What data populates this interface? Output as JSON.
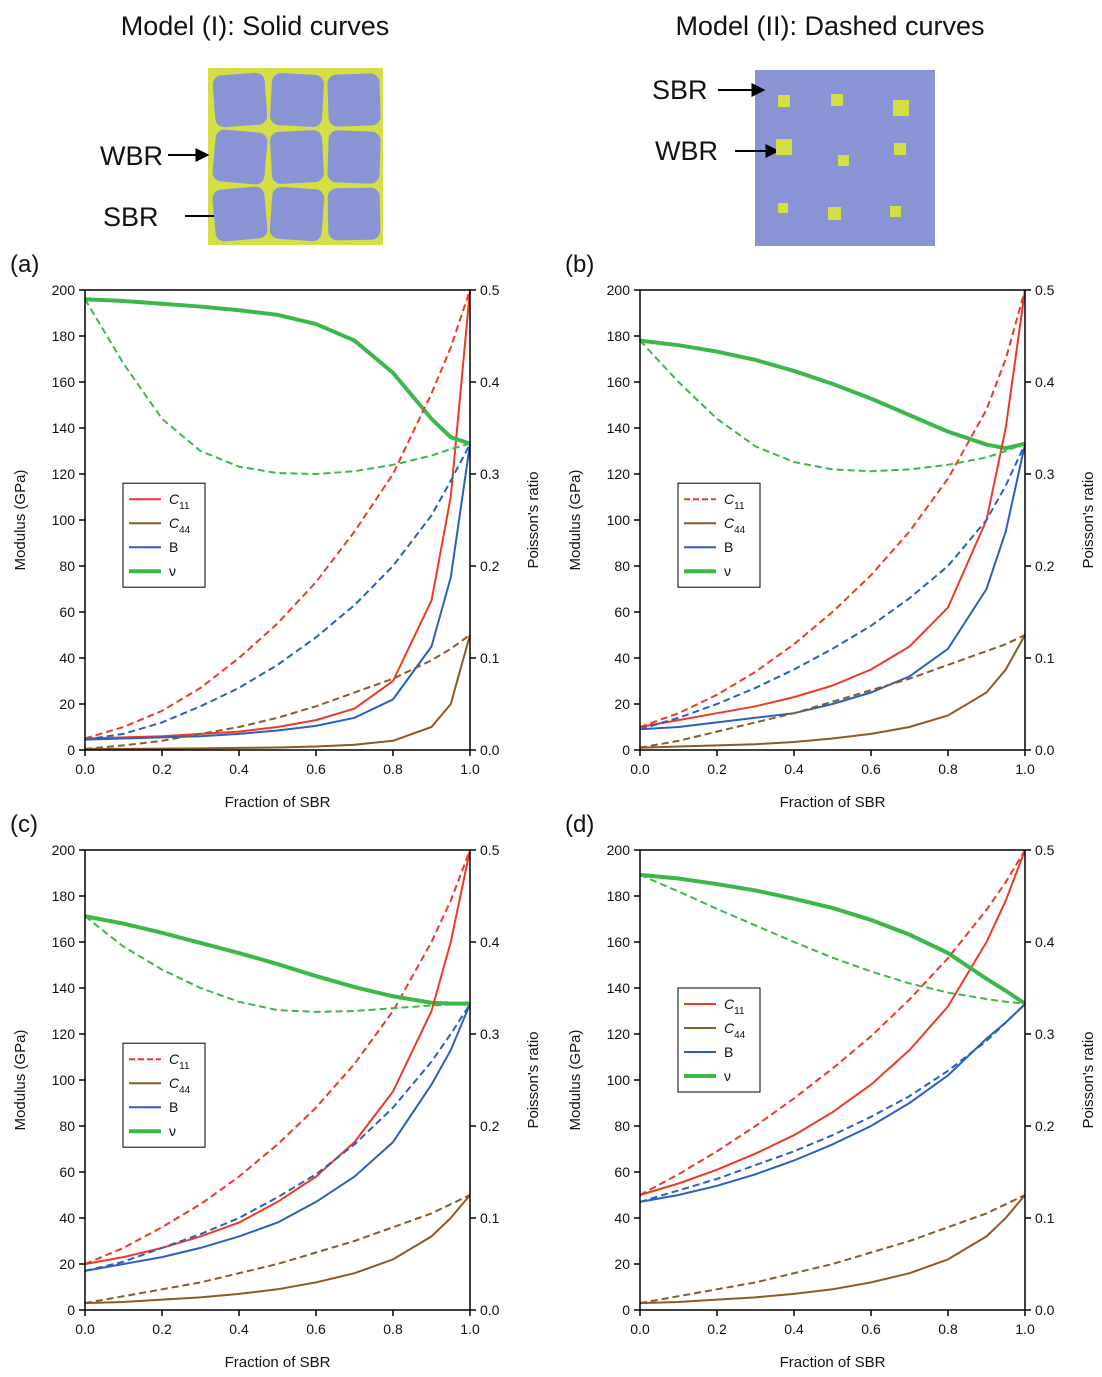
{
  "diagrams": [
    {
      "title": "Model (I): Solid curves",
      "labels": [
        "WBR",
        "SBR"
      ]
    },
    {
      "title": "Model (II): Dashed curves",
      "labels": [
        "SBR",
        "WBR"
      ]
    }
  ],
  "chart_data": [
    {
      "type": "line",
      "title": "(a)",
      "x_label": "Fraction of SBR",
      "y_label": "Modulus (GPa)",
      "y2_label": "Poisson's ratio",
      "legend": "center left",
      "x": [
        0,
        0.1,
        0.2,
        0.3,
        0.4,
        0.5,
        0.6,
        0.7,
        0.8,
        0.9,
        0.95,
        1
      ],
      "xlim": [
        0,
        1
      ],
      "xticks": [
        {
          "value": 0,
          "label": "0.0"
        },
        0.2,
        0.4,
        0.6,
        0.8,
        {
          "value": 1,
          "label": "1.0"
        }
      ],
      "ylim": [
        0,
        200
      ],
      "yticks": [
        0,
        20,
        40,
        60,
        80,
        100,
        120,
        140,
        160,
        180,
        200
      ],
      "y2lim": [
        0,
        0.5
      ],
      "y2ticks": [
        {
          "value": 0,
          "label": "0.0"
        },
        0.1,
        0.2,
        0.3,
        0.4,
        0.5
      ],
      "series": [
        {
          "name": "C11",
          "color": "#ee3a24",
          "dashed": false,
          "in_legend": true,
          "values": [
            5,
            5.5,
            6,
            7,
            8,
            10,
            13,
            18,
            30,
            65,
            110,
            200
          ]
        },
        {
          "name": "C44",
          "color": "#8b5a2b",
          "dashed": false,
          "in_legend": true,
          "values": [
            0.5,
            0.5,
            0.6,
            0.7,
            0.9,
            1.1,
            1.5,
            2.3,
            4,
            10,
            20,
            50
          ]
        },
        {
          "name": "B",
          "color": "#2b5fc0",
          "dashed": false,
          "in_legend": true,
          "values": [
            4.5,
            5,
            5.5,
            6,
            7,
            8.5,
            10.5,
            14,
            22,
            45,
            75,
            133
          ]
        },
        {
          "name": "ν",
          "color": "#3cb84a",
          "dashed": false,
          "in_legend": true,
          "axis": "y2",
          "values": [
            0.49,
            0.488,
            0.485,
            0.482,
            0.478,
            0.473,
            0.463,
            0.445,
            0.41,
            0.36,
            0.34,
            0.333
          ]
        },
        {
          "name": "C11",
          "color": "#ee3a24",
          "dashed": true,
          "in_legend": false,
          "values": [
            5,
            10,
            17,
            27,
            40,
            55,
            73,
            95,
            120,
            155,
            175,
            200
          ]
        },
        {
          "name": "C44",
          "color": "#8b5a2b",
          "dashed": true,
          "in_legend": false,
          "values": [
            0.5,
            2,
            4,
            7,
            10,
            14,
            19,
            25,
            31,
            39,
            44,
            50
          ]
        },
        {
          "name": "B",
          "color": "#2b5fc0",
          "dashed": true,
          "in_legend": false,
          "values": [
            4.5,
            7,
            12,
            19,
            27,
            37,
            49,
            63,
            80,
            102,
            117,
            133
          ]
        },
        {
          "name": "ν",
          "color": "#3cb84a",
          "dashed": true,
          "in_legend": false,
          "axis": "y2",
          "values": [
            0.49,
            0.42,
            0.36,
            0.325,
            0.308,
            0.301,
            0.3,
            0.303,
            0.31,
            0.32,
            0.327,
            0.333
          ]
        }
      ]
    },
    {
      "type": "line",
      "title": "(b)",
      "x_label": "Fraction of SBR",
      "y_label": "Modulus (GPa)",
      "y2_label": "Poisson's ratio",
      "legend": "center left",
      "x": [
        0,
        0.1,
        0.2,
        0.3,
        0.4,
        0.5,
        0.6,
        0.7,
        0.8,
        0.9,
        0.95,
        1
      ],
      "xlim": [
        0,
        1
      ],
      "xticks": [
        {
          "value": 0,
          "label": "0.0"
        },
        0.2,
        0.4,
        0.6,
        0.8,
        {
          "value": 1,
          "label": "1.0"
        }
      ],
      "ylim": [
        0,
        200
      ],
      "yticks": [
        0,
        20,
        40,
        60,
        80,
        100,
        120,
        140,
        160,
        180,
        200
      ],
      "y2lim": [
        0,
        0.5
      ],
      "y2ticks": [
        {
          "value": 0,
          "label": "0.0"
        },
        0.1,
        0.2,
        0.3,
        0.4,
        0.5
      ],
      "series": [
        {
          "name": "C11",
          "color": "#ee3a24",
          "dashed": true,
          "in_legend": true,
          "values": [
            10,
            16,
            24,
            34,
            46,
            60,
            76,
            95,
            118,
            148,
            170,
            200
          ]
        },
        {
          "name": "C44",
          "color": "#8b5a2b",
          "dashed": false,
          "in_legend": true,
          "values": [
            1,
            1.5,
            2,
            2.5,
            3.5,
            5,
            7,
            10,
            15,
            25,
            35,
            50
          ]
        },
        {
          "name": "B",
          "color": "#2b5fc0",
          "dashed": false,
          "in_legend": true,
          "values": [
            9,
            10,
            12,
            14,
            16,
            20,
            25,
            32,
            44,
            70,
            95,
            133
          ]
        },
        {
          "name": "ν",
          "color": "#3cb84a",
          "dashed": false,
          "in_legend": true,
          "axis": "y2",
          "values": [
            0.445,
            0.44,
            0.433,
            0.424,
            0.412,
            0.398,
            0.382,
            0.364,
            0.346,
            0.332,
            0.328,
            0.333
          ]
        },
        {
          "name": "C11",
          "color": "#ee3a24",
          "dashed": false,
          "in_legend": false,
          "values": [
            10,
            13,
            16,
            19,
            23,
            28,
            35,
            45,
            62,
            100,
            140,
            200
          ]
        },
        {
          "name": "C44",
          "color": "#8b5a2b",
          "dashed": true,
          "in_legend": false,
          "values": [
            1,
            4,
            8,
            12,
            16,
            21,
            26,
            31,
            37,
            43,
            46,
            50
          ]
        },
        {
          "name": "B",
          "color": "#2b5fc0",
          "dashed": true,
          "in_legend": false,
          "values": [
            9,
            14,
            20,
            27,
            35,
            44,
            54,
            66,
            80,
            100,
            115,
            133
          ]
        },
        {
          "name": "ν",
          "color": "#3cb84a",
          "dashed": true,
          "in_legend": false,
          "axis": "y2",
          "values": [
            0.445,
            0.4,
            0.36,
            0.33,
            0.313,
            0.305,
            0.303,
            0.305,
            0.31,
            0.318,
            0.325,
            0.333
          ]
        }
      ]
    },
    {
      "type": "line",
      "title": "(c)",
      "x_label": "Fraction of SBR",
      "y_label": "Modulus (GPa)",
      "y2_label": "Poisson's ratio",
      "legend": "center left",
      "x": [
        0,
        0.1,
        0.2,
        0.3,
        0.4,
        0.5,
        0.6,
        0.7,
        0.8,
        0.9,
        0.95,
        1
      ],
      "xlim": [
        0,
        1
      ],
      "xticks": [
        {
          "value": 0,
          "label": "0.0"
        },
        0.2,
        0.4,
        0.6,
        0.8,
        {
          "value": 1,
          "label": "1.0"
        }
      ],
      "ylim": [
        0,
        200
      ],
      "yticks": [
        0,
        20,
        40,
        60,
        80,
        100,
        120,
        140,
        160,
        180,
        200
      ],
      "y2lim": [
        0,
        0.5
      ],
      "y2ticks": [
        {
          "value": 0,
          "label": "0.0"
        },
        0.1,
        0.2,
        0.3,
        0.4,
        0.5
      ],
      "series": [
        {
          "name": "C11",
          "color": "#ee3a24",
          "dashed": true,
          "in_legend": true,
          "values": [
            20,
            27,
            36,
            46,
            58,
            72,
            88,
            107,
            130,
            160,
            178,
            200
          ]
        },
        {
          "name": "C44",
          "color": "#8b5a2b",
          "dashed": false,
          "in_legend": true,
          "values": [
            3,
            3.5,
            4.5,
            5.5,
            7,
            9,
            12,
            16,
            22,
            32,
            40,
            50
          ]
        },
        {
          "name": "B",
          "color": "#2b5fc0",
          "dashed": false,
          "in_legend": true,
          "values": [
            17,
            20,
            23,
            27,
            32,
            38,
            47,
            58,
            73,
            98,
            113,
            133
          ]
        },
        {
          "name": "ν",
          "color": "#3cb84a",
          "dashed": false,
          "in_legend": true,
          "axis": "y2",
          "values": [
            0.428,
            0.42,
            0.41,
            0.399,
            0.388,
            0.376,
            0.363,
            0.351,
            0.341,
            0.334,
            0.333,
            0.333
          ]
        },
        {
          "name": "C11",
          "color": "#ee3a24",
          "dashed": false,
          "in_legend": false,
          "values": [
            20,
            23,
            27,
            32,
            38,
            47,
            58,
            73,
            95,
            130,
            160,
            200
          ]
        },
        {
          "name": "C44",
          "color": "#8b5a2b",
          "dashed": true,
          "in_legend": false,
          "values": [
            3,
            6,
            9,
            12,
            16,
            20,
            25,
            30,
            36,
            42,
            46,
            50
          ]
        },
        {
          "name": "B",
          "color": "#2b5fc0",
          "dashed": true,
          "in_legend": false,
          "values": [
            17,
            21,
            27,
            33,
            40,
            49,
            59,
            72,
            88,
            108,
            120,
            133
          ]
        },
        {
          "name": "ν",
          "color": "#3cb84a",
          "dashed": true,
          "in_legend": false,
          "axis": "y2",
          "values": [
            0.428,
            0.395,
            0.37,
            0.35,
            0.335,
            0.326,
            0.324,
            0.325,
            0.328,
            0.331,
            0.332,
            0.333
          ]
        }
      ]
    },
    {
      "type": "line",
      "title": "(d)",
      "x_label": "Fraction of SBR",
      "y_label": "Modulus (GPa)",
      "y2_label": "Poisson's ratio",
      "legend": "upper left",
      "x": [
        0,
        0.1,
        0.2,
        0.3,
        0.4,
        0.5,
        0.6,
        0.7,
        0.8,
        0.9,
        0.95,
        1
      ],
      "xlim": [
        0,
        1
      ],
      "xticks": [
        {
          "value": 0,
          "label": "0.0"
        },
        0.2,
        0.4,
        0.6,
        0.8,
        {
          "value": 1,
          "label": "1.0"
        }
      ],
      "ylim": [
        0,
        200
      ],
      "yticks": [
        0,
        20,
        40,
        60,
        80,
        100,
        120,
        140,
        160,
        180,
        200
      ],
      "y2lim": [
        0,
        0.5
      ],
      "y2ticks": [
        {
          "value": 0,
          "label": "0.0"
        },
        0.1,
        0.2,
        0.3,
        0.4,
        0.5
      ],
      "series": [
        {
          "name": "C11",
          "color": "#ee3a24",
          "dashed": false,
          "in_legend": true,
          "values": [
            50,
            55,
            61,
            68,
            76,
            86,
            98,
            113,
            132,
            160,
            178,
            200
          ]
        },
        {
          "name": "C44",
          "color": "#8b5a2b",
          "dashed": false,
          "in_legend": true,
          "values": [
            3,
            3.5,
            4.5,
            5.5,
            7,
            9,
            12,
            16,
            22,
            32,
            40,
            50
          ]
        },
        {
          "name": "B",
          "color": "#2b5fc0",
          "dashed": false,
          "in_legend": true,
          "values": [
            47,
            50,
            54,
            59,
            65,
            72,
            80,
            90,
            102,
            118,
            125,
            133
          ]
        },
        {
          "name": "ν",
          "color": "#3cb84a",
          "dashed": false,
          "in_legend": true,
          "axis": "y2",
          "values": [
            0.473,
            0.469,
            0.463,
            0.456,
            0.447,
            0.437,
            0.424,
            0.408,
            0.388,
            0.36,
            0.347,
            0.333
          ]
        },
        {
          "name": "C11",
          "color": "#ee3a24",
          "dashed": true,
          "in_legend": false,
          "values": [
            50,
            59,
            69,
            80,
            92,
            105,
            119,
            135,
            153,
            174,
            186,
            200
          ]
        },
        {
          "name": "C44",
          "color": "#8b5a2b",
          "dashed": true,
          "in_legend": false,
          "values": [
            3,
            6,
            9,
            12,
            16,
            20,
            25,
            30,
            36,
            42,
            46,
            50
          ]
        },
        {
          "name": "B",
          "color": "#2b5fc0",
          "dashed": true,
          "in_legend": false,
          "values": [
            47,
            52,
            57,
            63,
            69,
            76,
            84,
            93,
            104,
            117,
            125,
            133
          ]
        },
        {
          "name": "ν",
          "color": "#3cb84a",
          "dashed": true,
          "in_legend": false,
          "axis": "y2",
          "values": [
            0.473,
            0.455,
            0.436,
            0.418,
            0.4,
            0.383,
            0.368,
            0.355,
            0.345,
            0.338,
            0.335,
            0.333
          ]
        }
      ]
    }
  ]
}
